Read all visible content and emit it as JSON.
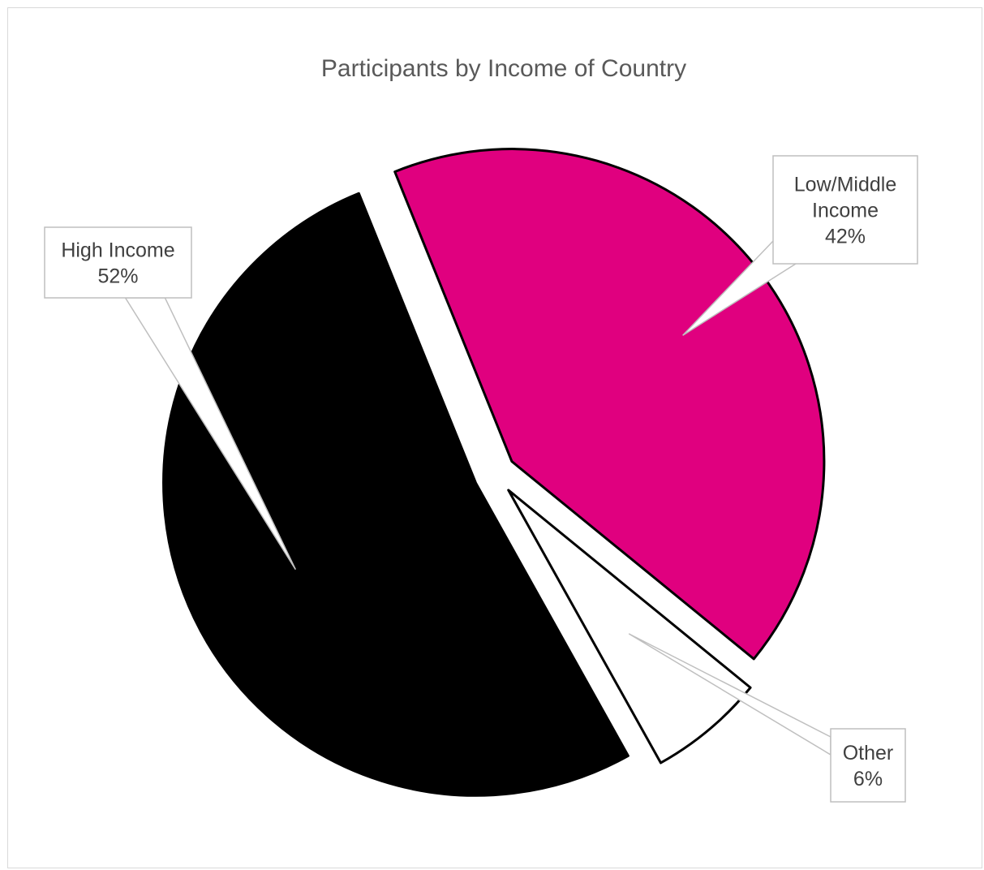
{
  "chart_data": {
    "type": "pie",
    "title": "Participants by Income of Country",
    "slices": [
      {
        "label": "Low/Middle Income",
        "label_lines": [
          "Low/Middle",
          "Income"
        ],
        "value": 42,
        "value_label": "42%",
        "color": "#e0007f"
      },
      {
        "label": "Other",
        "label_lines": [
          "Other"
        ],
        "value": 6,
        "value_label": "6%",
        "color": "#ffffff"
      },
      {
        "label": "High Income",
        "label_lines": [
          "High Income"
        ],
        "value": 52,
        "value_label": "52%",
        "color": "#000000"
      }
    ],
    "exploded": true,
    "legend": "none",
    "data_labels": "callouts"
  }
}
